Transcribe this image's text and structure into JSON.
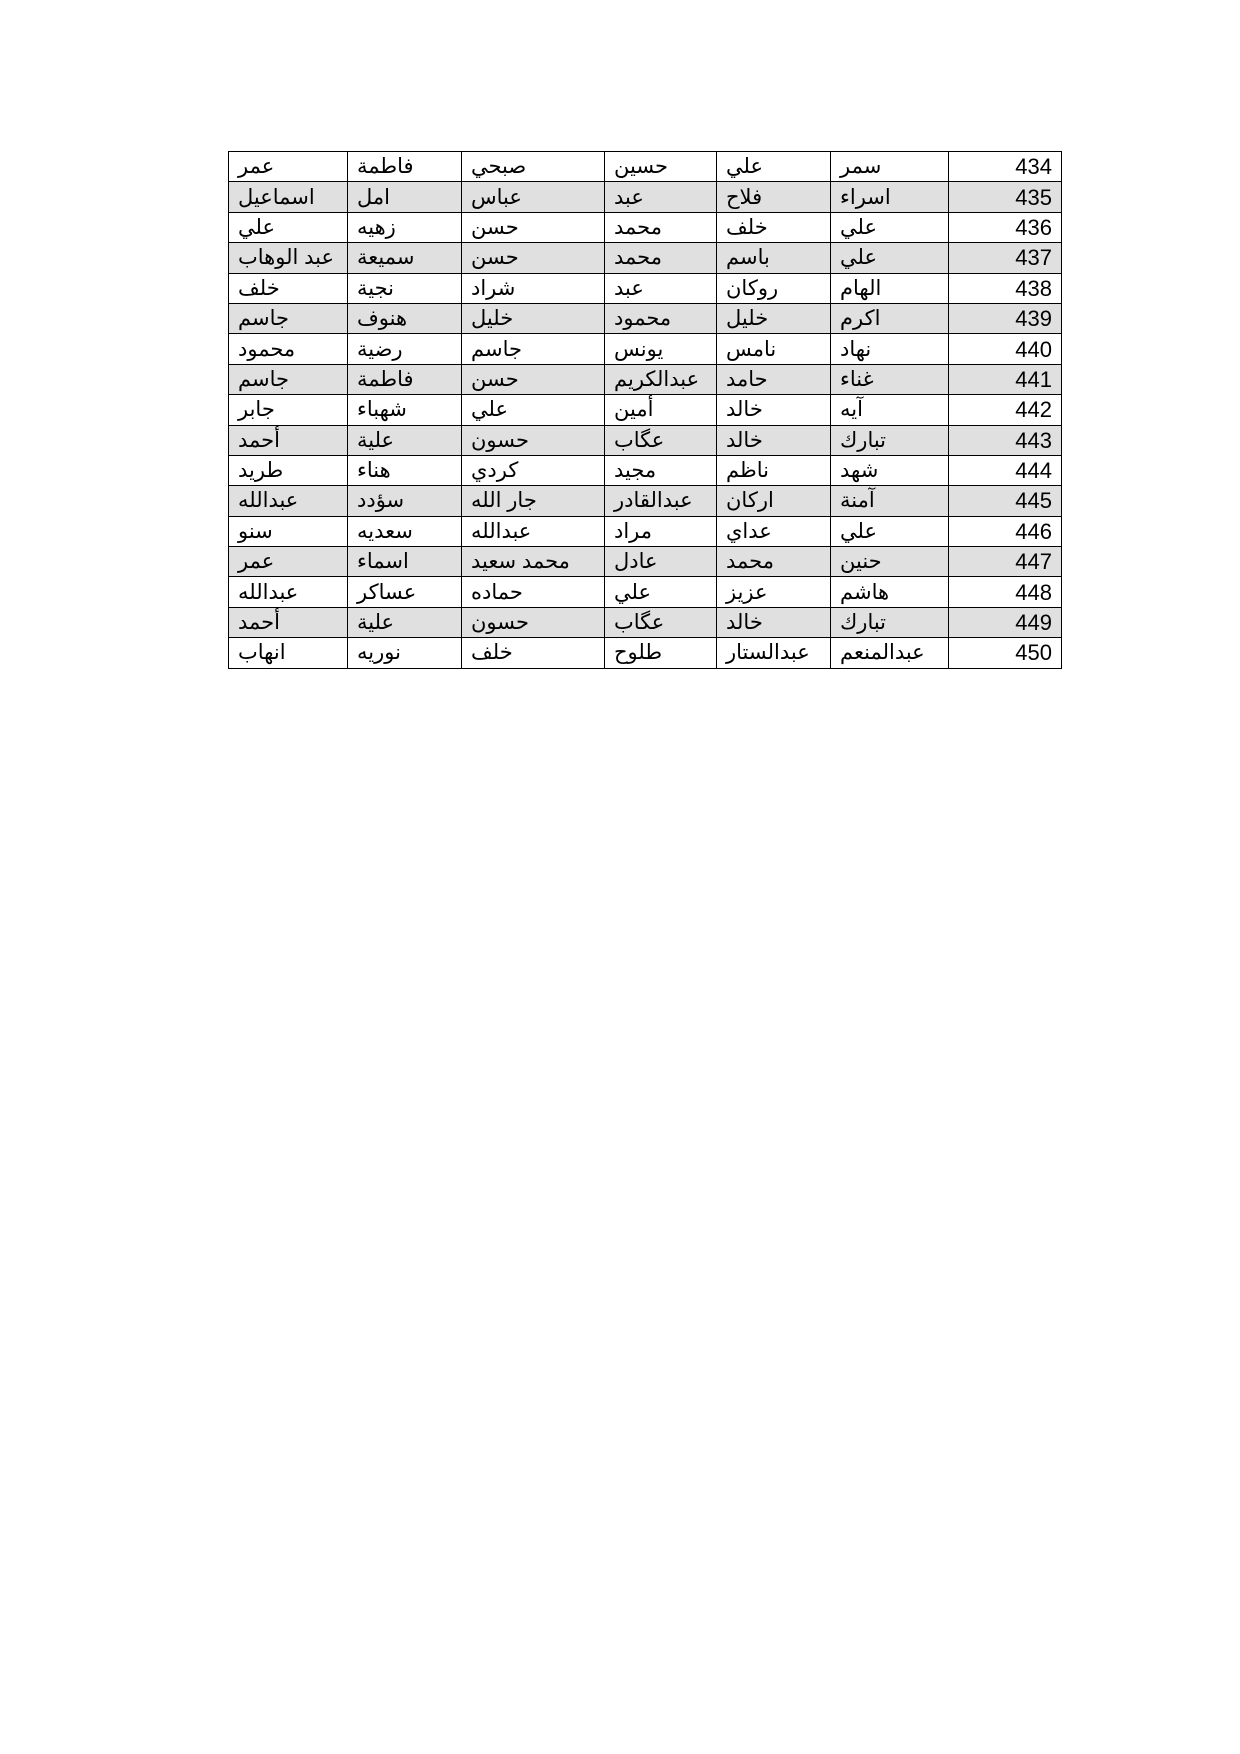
{
  "table": {
    "row_shading": "#e0e0e0",
    "rows": [
      {
        "id": "434",
        "names": [
          "سمر",
          "علي",
          "حسين",
          "صبحي",
          "فاطمة",
          "عمر"
        ]
      },
      {
        "id": "435",
        "names": [
          "اسراء",
          "فلاح",
          "عبد",
          "عباس",
          "امل",
          "اسماعيل"
        ]
      },
      {
        "id": "436",
        "names": [
          "علي",
          "خلف",
          "محمد",
          "حسن",
          "زهيه",
          "علي"
        ]
      },
      {
        "id": "437",
        "names": [
          "علي",
          "باسم",
          "محمد",
          "حسن",
          "سميعة",
          "عبد الوهاب"
        ]
      },
      {
        "id": "438",
        "names": [
          "الهام",
          "روكان",
          "عبد",
          "شراد",
          "نجية",
          "خلف"
        ]
      },
      {
        "id": "439",
        "names": [
          "اكرم",
          "خليل",
          "محمود",
          "خليل",
          "هنوف",
          "جاسم"
        ]
      },
      {
        "id": "440",
        "names": [
          "نهاد",
          "نامس",
          "يونس",
          "جاسم",
          "رضية",
          "محمود"
        ]
      },
      {
        "id": "441",
        "names": [
          "غناء",
          "حامد",
          "عبدالكريم",
          "حسن",
          "فاطمة",
          "جاسم"
        ]
      },
      {
        "id": "442",
        "names": [
          "آيه",
          "خالد",
          "أمين",
          "علي",
          "شهباء",
          "جابر"
        ]
      },
      {
        "id": "443",
        "names": [
          "تبارك",
          "خالد",
          "عگاب",
          "حسون",
          "علية",
          "أحمد"
        ]
      },
      {
        "id": "444",
        "names": [
          "شهد",
          "ناظم",
          "مجيد",
          "كردي",
          "هناء",
          "طريد"
        ]
      },
      {
        "id": "445",
        "names": [
          "آمنة",
          "اركان",
          "عبدالقادر",
          "جار الله",
          "سؤدد",
          "عبدالله"
        ]
      },
      {
        "id": "446",
        "names": [
          "علي",
          "عداي",
          "مراد",
          "عبدالله",
          "سعديه",
          "سنو"
        ]
      },
      {
        "id": "447",
        "names": [
          "حنين",
          "محمد",
          "عادل",
          "محمد سعيد",
          "اسماء",
          "عمر"
        ]
      },
      {
        "id": "448",
        "names": [
          "هاشم",
          "عزيز",
          "علي",
          "حماده",
          "عساكر",
          "عبدالله"
        ]
      },
      {
        "id": "449",
        "names": [
          "تبارك",
          "خالد",
          "عگاب",
          "حسون",
          "علية",
          "أحمد"
        ]
      },
      {
        "id": "450",
        "names": [
          "عبدالمنعم",
          "عبدالستار",
          "طلوح",
          "خلف",
          "نوريه",
          "انهاب"
        ]
      }
    ]
  }
}
